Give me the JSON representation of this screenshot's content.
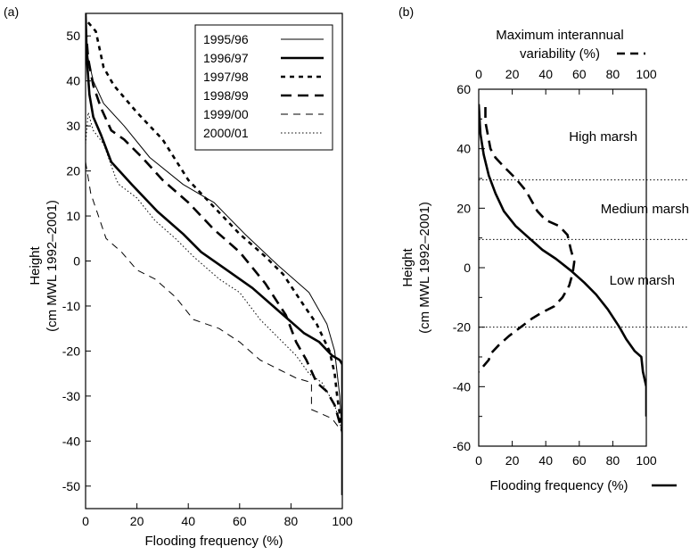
{
  "chart_data": [
    {
      "panel_label": "(a)",
      "type": "line",
      "xlabel": "Flooding frequency (%)",
      "ylabel": [
        "Height",
        "(cm MWL 1992–2001)"
      ],
      "xlim": [
        0,
        100
      ],
      "ylim": [
        -55,
        55
      ],
      "xticks": [
        0,
        20,
        40,
        60,
        80,
        100
      ],
      "yticks": [
        -50,
        -40,
        -30,
        -20,
        -10,
        0,
        10,
        20,
        30,
        40,
        50
      ],
      "legend_position": "top-right",
      "series": [
        {
          "name": "1995/96",
          "style": "thin-solid",
          "points": [
            [
              0,
              52
            ],
            [
              1,
              45
            ],
            [
              3,
              40
            ],
            [
              7,
              35
            ],
            [
              15,
              30
            ],
            [
              25,
              23
            ],
            [
              38,
              17
            ],
            [
              50,
              13
            ],
            [
              62,
              6
            ],
            [
              75,
              -1
            ],
            [
              87,
              -7
            ],
            [
              94,
              -14
            ],
            [
              97,
              -20
            ],
            [
              99,
              -30
            ],
            [
              100,
              -40
            ],
            [
              100,
              -52
            ]
          ]
        },
        {
          "name": "1996/97",
          "style": "thick-solid",
          "points": [
            [
              0,
              55
            ],
            [
              0.5,
              45
            ],
            [
              1.5,
              37
            ],
            [
              3,
              32
            ],
            [
              6,
              28
            ],
            [
              10,
              22
            ],
            [
              18,
              17
            ],
            [
              28,
              11
            ],
            [
              38,
              6
            ],
            [
              45,
              2
            ],
            [
              55,
              -2
            ],
            [
              65,
              -6
            ],
            [
              75,
              -11
            ],
            [
              85,
              -16
            ],
            [
              91,
              -18
            ],
            [
              96,
              -21
            ],
            [
              99,
              -22
            ],
            [
              100,
              -23
            ],
            [
              100,
              -52
            ]
          ]
        },
        {
          "name": "1997/98",
          "style": "short-dash",
          "points": [
            [
              1,
              53
            ],
            [
              4,
              51
            ],
            [
              7,
              43
            ],
            [
              11,
              39
            ],
            [
              20,
              33
            ],
            [
              30,
              27
            ],
            [
              40,
              18
            ],
            [
              50,
              12
            ],
            [
              60,
              6
            ],
            [
              70,
              1
            ],
            [
              77,
              -3
            ],
            [
              84,
              -9
            ],
            [
              90,
              -14
            ],
            [
              95,
              -20
            ],
            [
              97,
              -25
            ],
            [
              98,
              -30
            ],
            [
              100,
              -38
            ]
          ]
        },
        {
          "name": "1998/99",
          "style": "long-dash",
          "points": [
            [
              0,
              52
            ],
            [
              1,
              45
            ],
            [
              3,
              39
            ],
            [
              6,
              34
            ],
            [
              10,
              29
            ],
            [
              15,
              27
            ],
            [
              22,
              23
            ],
            [
              30,
              18
            ],
            [
              40,
              13
            ],
            [
              50,
              7
            ],
            [
              60,
              2
            ],
            [
              70,
              -5
            ],
            [
              78,
              -12
            ],
            [
              82,
              -18
            ],
            [
              86,
              -22
            ],
            [
              90,
              -27
            ],
            [
              94,
              -29
            ],
            [
              97,
              -32
            ],
            [
              100,
              -38
            ]
          ]
        },
        {
          "name": "1999/00",
          "style": "thin-dash",
          "points": [
            [
              0,
              22
            ],
            [
              2,
              15
            ],
            [
              5,
              10
            ],
            [
              8,
              5
            ],
            [
              14,
              2
            ],
            [
              20,
              -2
            ],
            [
              27,
              -4
            ],
            [
              35,
              -8
            ],
            [
              42,
              -13
            ],
            [
              52,
              -15
            ],
            [
              60,
              -18
            ],
            [
              68,
              -22
            ],
            [
              75,
              -24
            ],
            [
              82,
              -26
            ],
            [
              88,
              -27
            ],
            [
              88,
              -33
            ],
            [
              92,
              -34
            ],
            [
              96,
              -35
            ],
            [
              100,
              -38
            ]
          ]
        },
        {
          "name": "2000/01",
          "style": "dotted",
          "points": [
            [
              0,
              26
            ],
            [
              1,
              33
            ],
            [
              3,
              29
            ],
            [
              7,
              26
            ],
            [
              12,
              18
            ],
            [
              13,
              17
            ],
            [
              20,
              14
            ],
            [
              27,
              9
            ],
            [
              35,
              5
            ],
            [
              42,
              1
            ],
            [
              52,
              -4
            ],
            [
              60,
              -7
            ],
            [
              68,
              -13
            ],
            [
              75,
              -17
            ],
            [
              82,
              -21
            ],
            [
              87,
              -25
            ],
            [
              92,
              -27
            ],
            [
              97,
              -32
            ],
            [
              100,
              -38
            ]
          ]
        }
      ]
    },
    {
      "panel_label": "(b)",
      "type": "line",
      "xlabel": "Flooding frequency (%)",
      "x2label": [
        "Maximum interannual",
        "variability (%)"
      ],
      "ylabel": [
        "Height",
        "(cm MWL 1992–2001)"
      ],
      "xlim": [
        0,
        100
      ],
      "ylim": [
        -60,
        60
      ],
      "xticks": [
        0,
        20,
        40,
        60,
        80,
        100
      ],
      "yticks": [
        -60,
        -40,
        -20,
        0,
        20,
        40,
        60
      ],
      "zone_boundaries": [
        29.5,
        9.5,
        -20
      ],
      "zone_labels": [
        "High marsh",
        "Medium marsh",
        "Low marsh"
      ],
      "series": [
        {
          "name": "Flooding frequency",
          "style": "thick-solid",
          "points": [
            [
              0,
              55
            ],
            [
              1,
              45
            ],
            [
              3,
              38
            ],
            [
              6,
              31
            ],
            [
              10,
              25
            ],
            [
              15,
              19
            ],
            [
              22,
              14
            ],
            [
              30,
              10
            ],
            [
              38,
              6
            ],
            [
              46,
              3
            ],
            [
              55,
              -1
            ],
            [
              63,
              -5
            ],
            [
              70,
              -9
            ],
            [
              77,
              -14
            ],
            [
              84,
              -20
            ],
            [
              88,
              -24
            ],
            [
              93,
              -28
            ],
            [
              97,
              -30
            ],
            [
              98,
              -35
            ],
            [
              100,
              -40
            ],
            [
              100,
              -50
            ]
          ]
        },
        {
          "name": "Maximum interannual variability",
          "style": "long-dash",
          "points": [
            [
              4,
              54
            ],
            [
              4,
              49
            ],
            [
              7,
              40
            ],
            [
              10,
              37
            ],
            [
              15,
              34
            ],
            [
              22,
              30
            ],
            [
              28,
              26
            ],
            [
              32,
              22
            ],
            [
              35,
              19
            ],
            [
              40,
              16
            ],
            [
              48,
              14
            ],
            [
              53,
              11
            ],
            [
              55,
              6
            ],
            [
              57,
              2
            ],
            [
              56,
              -2
            ],
            [
              54,
              -6
            ],
            [
              50,
              -10
            ],
            [
              45,
              -13
            ],
            [
              38,
              -15
            ],
            [
              32,
              -17
            ],
            [
              25,
              -20
            ],
            [
              18,
              -23
            ],
            [
              12,
              -26
            ],
            [
              7,
              -29
            ],
            [
              6,
              -31
            ],
            [
              3,
              -33
            ],
            [
              0,
              -35
            ]
          ]
        }
      ]
    }
  ]
}
